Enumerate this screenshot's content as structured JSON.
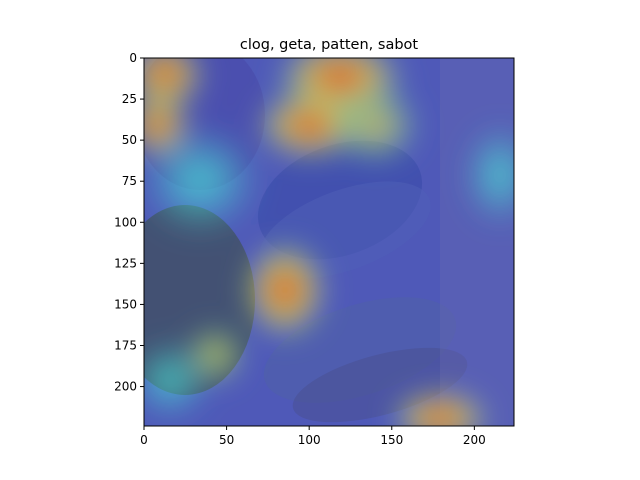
{
  "chart_data": {
    "type": "heatmap",
    "title": "clog, geta, patten, sabot",
    "xlabel": "",
    "ylabel": "",
    "xlim": [
      0,
      224
    ],
    "ylim": [
      224,
      0
    ],
    "x_ticks": [
      0,
      50,
      100,
      150,
      200
    ],
    "y_ticks": [
      0,
      25,
      50,
      75,
      100,
      125,
      150,
      175,
      200
    ],
    "colormap": "jet",
    "overlay_on_image": true,
    "grid": false,
    "hotspots": [
      {
        "x": 8,
        "y": 8,
        "value": 0.95
      },
      {
        "x": 5,
        "y": 40,
        "value": 0.85
      },
      {
        "x": 118,
        "y": 8,
        "value": 0.95
      },
      {
        "x": 95,
        "y": 10,
        "value": 0.8
      },
      {
        "x": 105,
        "y": 38,
        "value": 0.95
      },
      {
        "x": 88,
        "y": 138,
        "value": 0.85
      },
      {
        "x": 180,
        "y": 219,
        "value": 0.95
      },
      {
        "x": 40,
        "y": 182,
        "value": 0.6
      },
      {
        "x": 218,
        "y": 72,
        "value": 0.55
      },
      {
        "x": 140,
        "y": 40,
        "value": 0.6
      }
    ]
  }
}
